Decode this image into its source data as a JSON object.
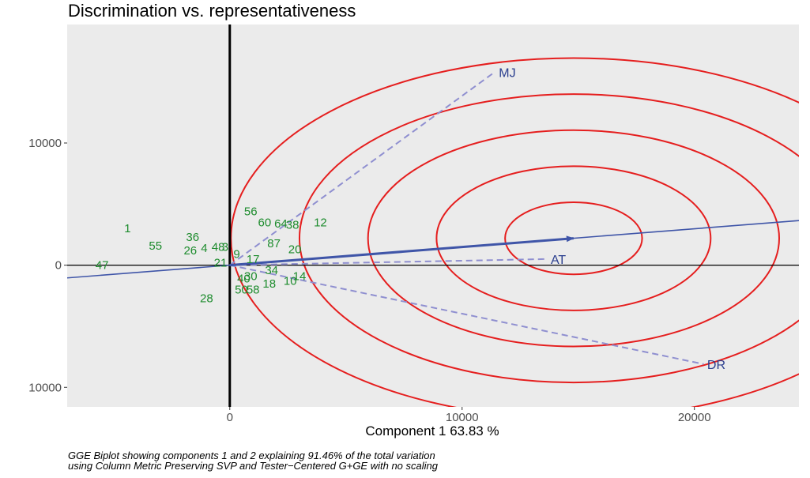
{
  "chart_data": {
    "type": "scatter",
    "title": "Discrimination vs. representativeness",
    "xlabel": "Component 1 63.83 %",
    "ylabel": "",
    "xlim": [
      -7000,
      24500
    ],
    "ylim": [
      -11600,
      19700
    ],
    "x_ticks": [
      {
        "value": 0,
        "label": "0"
      },
      {
        "value": 10000,
        "label": "10000"
      },
      {
        "value": 20000,
        "label": "20000"
      }
    ],
    "y_ticks": [
      {
        "value": 10000,
        "label": "10000"
      },
      {
        "value": 0,
        "label": "0"
      },
      {
        "value": -10000,
        "label": "10000"
      }
    ],
    "caption_lines": [
      "GGE Biplot showing components 1 and 2 explaining 91.46% of the total variation",
      "using Column Metric Preserving SVP and Tester−Centered G+GE with no scaling"
    ],
    "environments": [
      {
        "name": "MJ",
        "x": 11400,
        "y": 15800
      },
      {
        "name": "DR",
        "x": 20400,
        "y": -8100
      },
      {
        "name": "AT",
        "x": 13600,
        "y": 500
      }
    ],
    "average_environment": {
      "x": 14800,
      "y": 2200
    },
    "ate_axis_slope": 0.149,
    "concentric_radii": [
      2950,
      5900,
      8850,
      11800,
      14750
    ],
    "genotypes": [
      {
        "label": "1",
        "x": -4400,
        "y": 3000
      },
      {
        "label": "47",
        "x": -5500,
        "y": 0
      },
      {
        "label": "55",
        "x": -3200,
        "y": 1600
      },
      {
        "label": "36",
        "x": -1600,
        "y": 2300
      },
      {
        "label": "26",
        "x": -1700,
        "y": 1200
      },
      {
        "label": "4",
        "x": -1100,
        "y": 1400
      },
      {
        "label": "48",
        "x": -500,
        "y": 1500
      },
      {
        "label": "3",
        "x": -200,
        "y": 1500
      },
      {
        "label": "56",
        "x": 900,
        "y": 4400
      },
      {
        "label": "60",
        "x": 1500,
        "y": 3500
      },
      {
        "label": "64",
        "x": 2200,
        "y": 3400
      },
      {
        "label": "38",
        "x": 2700,
        "y": 3300
      },
      {
        "label": "12",
        "x": 3900,
        "y": 3500
      },
      {
        "label": "87",
        "x": 1900,
        "y": 1800
      },
      {
        "label": "20",
        "x": 2800,
        "y": 1300
      },
      {
        "label": "17",
        "x": 1000,
        "y": 500
      },
      {
        "label": "9",
        "x": 300,
        "y": 900
      },
      {
        "label": "21",
        "x": -400,
        "y": 200
      },
      {
        "label": "34",
        "x": 1800,
        "y": -400
      },
      {
        "label": "14",
        "x": 3000,
        "y": -900
      },
      {
        "label": "10",
        "x": 2600,
        "y": -1300
      },
      {
        "label": "18",
        "x": 1700,
        "y": -1500
      },
      {
        "label": "30",
        "x": 900,
        "y": -900
      },
      {
        "label": "40",
        "x": 600,
        "y": -1100
      },
      {
        "label": "58",
        "x": 1000,
        "y": -2000
      },
      {
        "label": "50",
        "x": 500,
        "y": -2000
      },
      {
        "label": "28",
        "x": -1000,
        "y": -2700
      }
    ]
  },
  "colors": {
    "panel_bg": "#ebebeb",
    "circle": "#e51e1e",
    "env_vector": "#8f8fd0",
    "ate_axis": "#3f55a8",
    "genotype_text": "#1e8c2e",
    "env_text": "#2b3f8f"
  }
}
